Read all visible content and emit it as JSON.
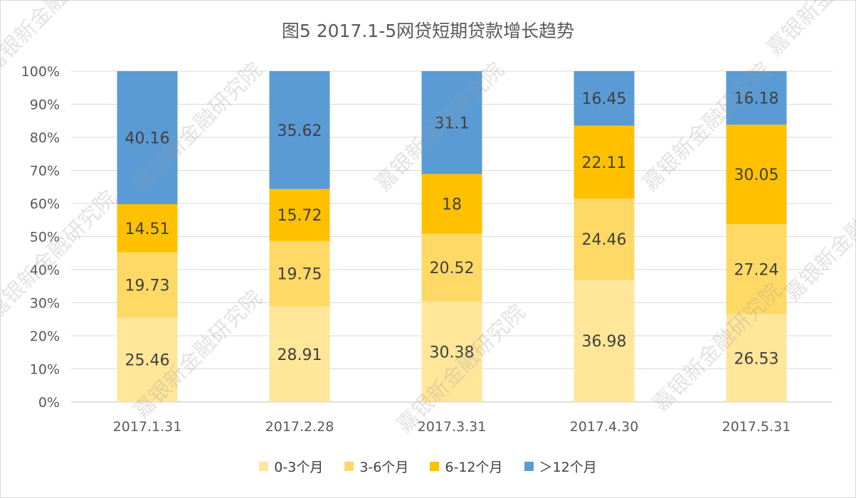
{
  "chart_data": {
    "type": "bar",
    "stacked": true,
    "percent_stacked": true,
    "title": "图5 2017.1-5网贷短期贷款增长趋势",
    "categories": [
      "2017.1.31",
      "2017.2.28",
      "2017.3.31",
      "2017.4.30",
      "2017.5.31"
    ],
    "series": [
      {
        "name": "0-3个月",
        "color": "#ffe699",
        "values": [
          25.46,
          28.91,
          30.38,
          36.98,
          26.53
        ]
      },
      {
        "name": "3-6个月",
        "color": "#ffd966",
        "values": [
          19.73,
          19.75,
          20.52,
          24.46,
          27.24
        ]
      },
      {
        "name": "6-12个月",
        "color": "#ffc000",
        "values": [
          14.51,
          15.72,
          18,
          22.11,
          30.05
        ]
      },
      {
        "name": "＞12个月",
        "color": "#5b9bd5",
        "values": [
          40.16,
          35.62,
          31.1,
          16.45,
          16.18
        ]
      }
    ],
    "value_labels": [
      [
        "25.46",
        "28.91",
        "30.38",
        "36.98",
        "26.53"
      ],
      [
        "19.73",
        "19.75",
        "20.52",
        "24.46",
        "27.24"
      ],
      [
        "14.51",
        "15.72",
        "18",
        "22.11",
        "30.05"
      ],
      [
        "40.16",
        "35.62",
        "31.1",
        "16.45",
        "16.18"
      ]
    ],
    "y_ticks": [
      "0%",
      "10%",
      "20%",
      "30%",
      "40%",
      "50%",
      "60%",
      "70%",
      "80%",
      "90%",
      "100%"
    ],
    "ylim": [
      0,
      100
    ],
    "grid": true,
    "legend_position": "bottom"
  },
  "watermark": {
    "text": "嘉银新金融研究院"
  }
}
